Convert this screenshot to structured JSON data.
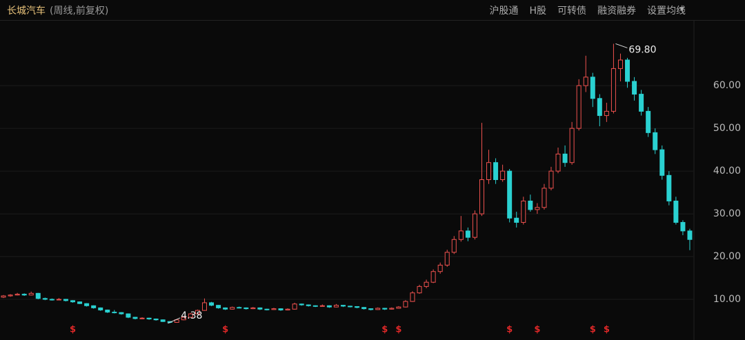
{
  "header": {
    "title": "长城汽车",
    "subtitle": "(周线,前复权)",
    "buttons": [
      "沪股通",
      "H股",
      "可转债",
      "融资融券",
      "设置均线"
    ]
  },
  "chart_data": {
    "type": "candlestick",
    "up_color": "#f0524f",
    "down_color": "#2ad1d1",
    "grid": true,
    "ylim": [
      0.8,
      75.2
    ],
    "yticks": [
      {
        "value": 10,
        "label": "10.00"
      },
      {
        "value": 20,
        "label": "20.00"
      },
      {
        "value": 30,
        "label": "30.00"
      },
      {
        "value": 40,
        "label": "40.00"
      },
      {
        "value": 50,
        "label": "50.00"
      },
      {
        "value": 60,
        "label": "60.00"
      }
    ],
    "max_label": "69.80",
    "min_label": "4.38",
    "open": [
      10.5,
      10.8,
      11.0,
      11.2,
      11.0,
      11.4,
      10.2,
      10.0,
      9.9,
      10.0,
      9.7,
      9.4,
      9.0,
      8.5,
      8.0,
      7.5,
      7.0,
      6.9,
      6.6,
      5.8,
      5.5,
      5.6,
      5.4,
      5.2,
      4.8,
      4.6,
      5.2,
      5.8,
      6.6,
      7.4,
      9.2,
      8.6,
      8.0,
      7.7,
      8.1,
      8.0,
      7.8,
      8.0,
      7.7,
      7.6,
      7.8,
      7.5,
      7.7,
      8.9,
      8.7,
      8.5,
      8.4,
      8.5,
      8.2,
      8.6,
      8.4,
      8.3,
      8.1,
      7.8,
      7.6,
      7.9,
      7.7,
      7.9,
      8.2,
      9.5,
      11.5,
      13.0,
      14.0,
      16.5,
      18.0,
      21.0,
      24.0,
      26.0,
      24.5,
      30.0,
      38.0,
      42.0,
      38.0,
      40.0,
      29.0,
      28.0,
      33.0,
      31.0,
      31.5,
      36.0,
      40.0,
      44.0,
      42.0,
      50.0,
      60.0,
      62.0,
      57.0,
      53.0,
      54.0,
      64.0,
      66.0,
      61.0,
      58.0,
      54.0,
      49.0,
      45.0,
      39.0,
      33.0,
      28.0,
      26.0
    ],
    "high": [
      11.0,
      11.2,
      11.5,
      11.4,
      11.8,
      11.5,
      10.4,
      10.2,
      10.3,
      10.1,
      9.8,
      9.5,
      9.1,
      8.6,
      8.1,
      7.6,
      7.5,
      7.0,
      6.7,
      5.9,
      5.8,
      5.7,
      5.5,
      5.3,
      4.9,
      5.4,
      6.0,
      6.8,
      7.6,
      10.2,
      9.4,
      8.7,
      8.1,
      8.3,
      8.3,
      8.1,
      8.2,
      8.1,
      7.8,
      8.0,
      7.9,
      7.9,
      9.2,
      9.0,
      8.8,
      8.6,
      8.8,
      8.6,
      8.9,
      8.7,
      8.5,
      8.4,
      8.2,
      7.9,
      8.1,
      8.0,
      8.1,
      8.4,
      9.8,
      11.9,
      13.4,
      14.6,
      17.0,
      18.6,
      21.6,
      24.8,
      29.5,
      26.8,
      30.8,
      51.3,
      45.0,
      43.0,
      41.5,
      40.5,
      30.5,
      34.0,
      34.5,
      32.5,
      37.0,
      41.0,
      45.5,
      46.0,
      51.5,
      61.5,
      67.0,
      63.0,
      58.0,
      56.0,
      69.8,
      67.5,
      66.5,
      62.0,
      59.0,
      55.0,
      50.0,
      46.0,
      40.0,
      34.0,
      28.5,
      26.5
    ],
    "low": [
      10.3,
      10.6,
      10.9,
      10.8,
      10.9,
      10.0,
      9.8,
      9.7,
      9.8,
      9.5,
      9.2,
      8.9,
      8.3,
      7.8,
      7.3,
      6.8,
      6.7,
      6.4,
      5.6,
      5.3,
      5.4,
      5.2,
      5.0,
      4.7,
      4.38,
      4.5,
      5.1,
      5.7,
      6.5,
      7.3,
      8.4,
      7.8,
      7.5,
      7.6,
      7.9,
      7.6,
      7.7,
      7.5,
      7.4,
      7.5,
      7.3,
      7.4,
      7.6,
      8.5,
      8.3,
      8.2,
      8.3,
      8.0,
      8.1,
      8.2,
      8.1,
      7.9,
      7.6,
      7.4,
      7.5,
      7.5,
      7.6,
      7.8,
      8.1,
      9.4,
      11.3,
      12.6,
      13.8,
      16.0,
      17.6,
      20.6,
      23.5,
      23.6,
      24.0,
      29.5,
      37.0,
      37.0,
      37.5,
      28.0,
      26.8,
      27.5,
      30.5,
      30.0,
      31.0,
      35.5,
      39.5,
      41.0,
      41.5,
      49.5,
      58.5,
      55.0,
      50.5,
      51.5,
      53.5,
      61.0,
      59.5,
      56.5,
      53.0,
      48.0,
      44.0,
      38.0,
      32.0,
      27.5,
      25.0,
      21.5
    ],
    "close": [
      10.8,
      11.0,
      11.2,
      11.0,
      11.4,
      10.2,
      10.0,
      9.9,
      10.0,
      9.7,
      9.4,
      9.0,
      8.5,
      8.0,
      7.5,
      7.0,
      6.9,
      6.6,
      5.8,
      5.5,
      5.6,
      5.4,
      5.2,
      4.8,
      4.6,
      5.2,
      5.8,
      6.6,
      7.4,
      9.2,
      8.6,
      8.0,
      7.7,
      8.1,
      8.0,
      7.8,
      8.0,
      7.7,
      7.6,
      7.8,
      7.5,
      7.7,
      8.9,
      8.7,
      8.5,
      8.4,
      8.5,
      8.2,
      8.6,
      8.4,
      8.3,
      8.1,
      7.8,
      7.6,
      7.9,
      7.7,
      7.9,
      8.2,
      9.5,
      11.5,
      13.0,
      14.0,
      16.5,
      18.0,
      21.0,
      24.0,
      26.0,
      24.5,
      30.0,
      38.0,
      42.0,
      38.0,
      40.0,
      29.0,
      28.0,
      33.0,
      31.0,
      31.5,
      36.0,
      40.0,
      44.0,
      42.0,
      50.0,
      60.0,
      62.0,
      57.0,
      53.0,
      54.0,
      64.0,
      66.0,
      61.0,
      58.0,
      54.0,
      49.0,
      45.0,
      39.0,
      33.0,
      28.0,
      26.0,
      24.0
    ],
    "dividend_flags": [
      null,
      null,
      null,
      null,
      null,
      null,
      null,
      null,
      null,
      null,
      "$",
      null,
      null,
      null,
      null,
      null,
      null,
      null,
      null,
      null,
      null,
      null,
      null,
      null,
      null,
      null,
      null,
      null,
      null,
      null,
      null,
      null,
      "$",
      null,
      null,
      null,
      null,
      null,
      null,
      null,
      null,
      null,
      null,
      null,
      null,
      null,
      null,
      null,
      null,
      null,
      null,
      null,
      null,
      null,
      null,
      "$",
      null,
      "$",
      null,
      null,
      null,
      null,
      null,
      null,
      null,
      null,
      null,
      null,
      null,
      null,
      null,
      null,
      null,
      "$",
      null,
      null,
      null,
      "$",
      null,
      null,
      null,
      null,
      null,
      null,
      null,
      "$",
      null,
      "$",
      null,
      null,
      null,
      null,
      null,
      null,
      null,
      null,
      null,
      null,
      null,
      null
    ]
  }
}
